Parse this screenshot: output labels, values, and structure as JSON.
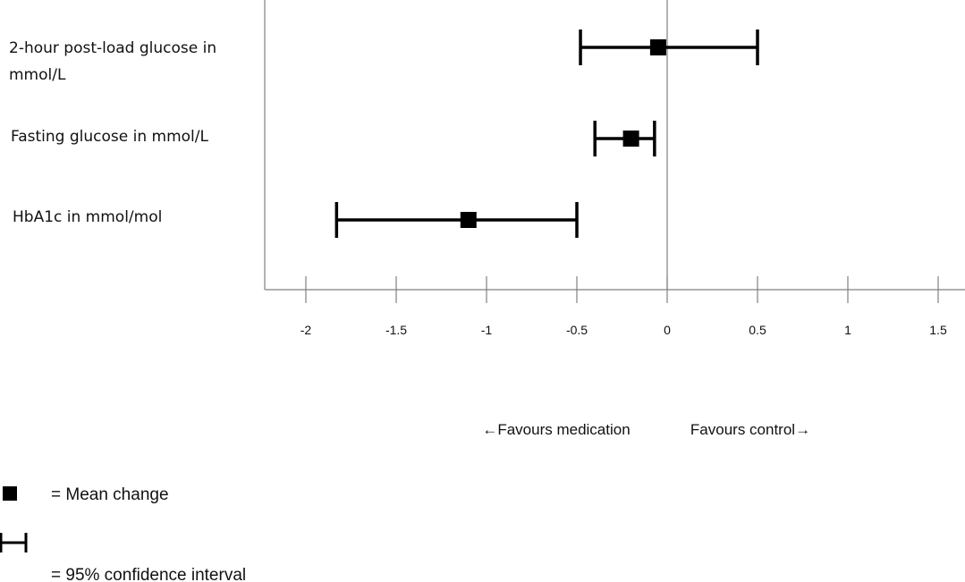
{
  "chart_data": {
    "type": "forest",
    "categories": [
      "2-hour post-load glucose in mmol/L",
      "Fasting glucose in mmol/L",
      "HbA1c in mmol/mol"
    ],
    "category_lines": [
      [
        "2-hour post-load glucose in",
        "mmol/L"
      ],
      [
        "Fasting glucose in mmol/L"
      ],
      [
        "HbA1c in mmol/mol"
      ]
    ],
    "series": [
      {
        "values": [
          -0.05,
          -0.2,
          -1.1
        ],
        "ci_low": [
          -0.48,
          -0.4,
          -1.83
        ],
        "ci_high": [
          0.5,
          -0.07,
          -0.5
        ]
      }
    ],
    "xlim": [
      -2.25,
      1.65
    ],
    "xticks": [
      -2,
      -1.5,
      -1,
      -0.5,
      0,
      0.5,
      1,
      1.5
    ],
    "xtick_labels": [
      "-2",
      "-1.5",
      "-1",
      "-0.5",
      "0",
      "0.5",
      "1",
      "1.5"
    ],
    "reference_line": 0,
    "direction_labels": {
      "left": "←Favours medication",
      "right": "Favours control→"
    },
    "legend": [
      {
        "symbol": "square",
        "text": "= Mean change"
      },
      {
        "symbol": "interval",
        "text": "= 95% confidence interval"
      }
    ],
    "colors": {
      "marker": "#000000",
      "axis": "#808080"
    }
  }
}
